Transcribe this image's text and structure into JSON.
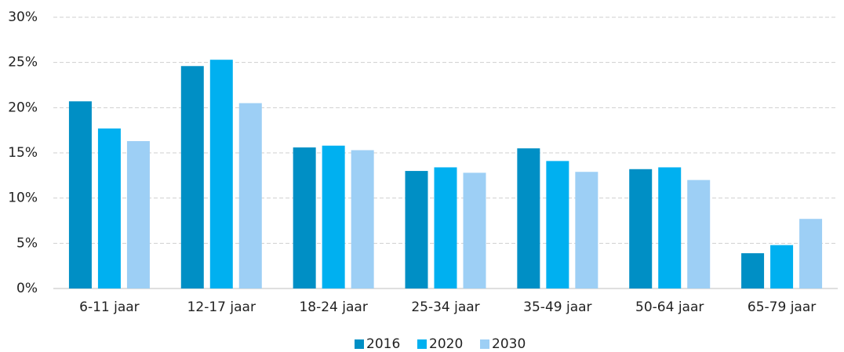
{
  "chart_data": {
    "type": "bar",
    "categories": [
      "6-11 jaar",
      "12-17 jaar",
      "18-24 jaar",
      "25-34 jaar",
      "35-49 jaar",
      "50-64 jaar",
      "65-79 jaar"
    ],
    "series": [
      {
        "name": "2016",
        "color": "#008fc5",
        "values": [
          20.7,
          24.6,
          15.6,
          13.0,
          15.5,
          13.2,
          3.9
        ]
      },
      {
        "name": "2020",
        "color": "#00b0f0",
        "values": [
          17.7,
          25.3,
          15.8,
          13.4,
          14.1,
          13.4,
          4.8
        ]
      },
      {
        "name": "2030",
        "color": "#9dcff5",
        "values": [
          16.3,
          20.5,
          15.3,
          12.8,
          12.9,
          12.0,
          7.7
        ]
      }
    ],
    "ylim": [
      0,
      30
    ],
    "yticks": [
      {
        "value": 0,
        "label": "0%"
      },
      {
        "value": 5,
        "label": "5%"
      },
      {
        "value": 10,
        "label": "10%"
      },
      {
        "value": 15,
        "label": "15%"
      },
      {
        "value": 20,
        "label": "20%"
      },
      {
        "value": 25,
        "label": "25%"
      },
      {
        "value": 30,
        "label": "30%"
      }
    ],
    "grid": true,
    "legend": "bottom"
  }
}
